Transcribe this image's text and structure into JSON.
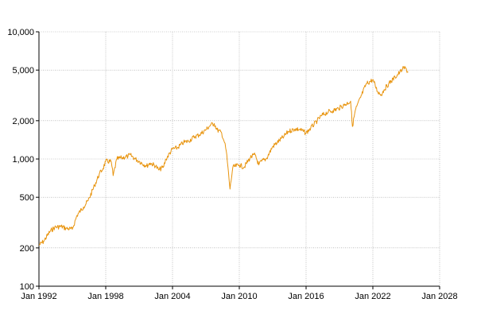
{
  "chart_data": {
    "type": "line",
    "title": "",
    "xlabel": "",
    "ylabel": "",
    "x_scale": "time",
    "y_scale": "log",
    "xlim": [
      "1992-01",
      "2028-01"
    ],
    "ylim": [
      100,
      10000
    ],
    "grid": true,
    "legend": "none",
    "colors": {
      "line": "#E8940E",
      "grid": "#9a9a9a",
      "axis": "#000000"
    },
    "x_ticks": [
      {
        "value": "1992-01",
        "label": "Jan 1992"
      },
      {
        "value": "1998-01",
        "label": "Jan 1998"
      },
      {
        "value": "2004-01",
        "label": "Jan 2004"
      },
      {
        "value": "2010-01",
        "label": "Jan 2010"
      },
      {
        "value": "2016-01",
        "label": "Jan 2016"
      },
      {
        "value": "2022-01",
        "label": "Jan 2022"
      },
      {
        "value": "2028-01",
        "label": "Jan 2028"
      }
    ],
    "y_ticks": [
      {
        "value": 100,
        "label": "100"
      },
      {
        "value": 200,
        "label": "200"
      },
      {
        "value": 500,
        "label": "500"
      },
      {
        "value": 1000,
        "label": "1,000"
      },
      {
        "value": 2000,
        "label": "2,000"
      },
      {
        "value": 5000,
        "label": "5,000"
      },
      {
        "value": 10000,
        "label": "10,000"
      }
    ],
    "series": [
      {
        "x": [
          "1992-01",
          "1992-06",
          "1993-01",
          "1993-06",
          "1994-01",
          "1994-06",
          "1995-01",
          "1995-06",
          "1996-01",
          "1996-06",
          "1997-01",
          "1997-06",
          "1997-10",
          "1998-01",
          "1998-07",
          "1998-09",
          "1999-01",
          "1999-06",
          "2000-01",
          "2000-03",
          "2000-09",
          "2001-01",
          "2001-09",
          "2002-01",
          "2002-07",
          "2002-10",
          "2003-03",
          "2003-06",
          "2004-01",
          "2004-06",
          "2005-01",
          "2005-06",
          "2006-01",
          "2006-06",
          "2007-01",
          "2007-06",
          "2007-10",
          "2008-01",
          "2008-06",
          "2008-09",
          "2008-11",
          "2009-03",
          "2009-06",
          "2010-01",
          "2010-06",
          "2011-01",
          "2011-06",
          "2011-10",
          "2012-01",
          "2012-06",
          "2013-01",
          "2013-06",
          "2014-01",
          "2014-06",
          "2015-01",
          "2015-06",
          "2016-01",
          "2016-06",
          "2017-01",
          "2017-06",
          "2018-01",
          "2018-06",
          "2018-12",
          "2019-06",
          "2020-01",
          "2020-03",
          "2020-06",
          "2021-01",
          "2021-06",
          "2022-01",
          "2022-06",
          "2022-10",
          "2023-01",
          "2023-06",
          "2024-01",
          "2024-06",
          "2024-09",
          "2024-12",
          "2025-03"
        ],
        "y": [
          210,
          225,
          270,
          290,
          295,
          285,
          280,
          360,
          420,
          470,
          620,
          760,
          840,
          960,
          950,
          740,
          1000,
          1020,
          1050,
          1080,
          1000,
          960,
          880,
          930,
          880,
          820,
          860,
          1000,
          1200,
          1220,
          1350,
          1380,
          1500,
          1550,
          1700,
          1850,
          1900,
          1700,
          1600,
          1350,
          1150,
          580,
          860,
          900,
          860,
          1030,
          1080,
          900,
          960,
          1000,
          1250,
          1350,
          1500,
          1650,
          1720,
          1710,
          1600,
          1750,
          2000,
          2200,
          2350,
          2400,
          2500,
          2650,
          2850,
          1800,
          2400,
          3200,
          3900,
          4200,
          3400,
          3200,
          3500,
          3900,
          4400,
          4800,
          5100,
          5200,
          4800
        ]
      }
    ]
  }
}
